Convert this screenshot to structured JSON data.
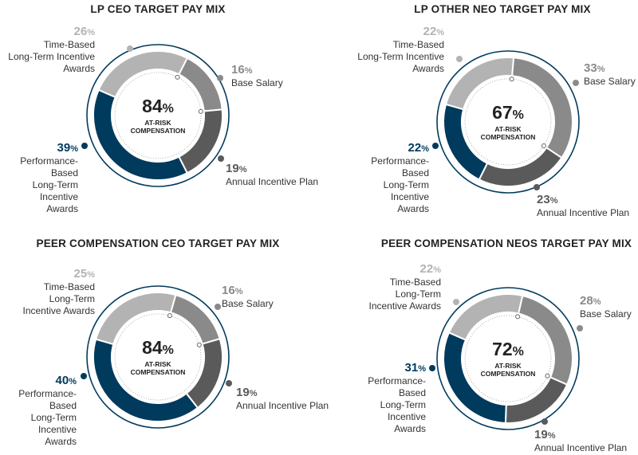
{
  "colors": {
    "time": "#b3b3b3",
    "base": "#8a8a8a",
    "aip": "#5a5a5a",
    "perf": "#003a5d",
    "ring": "#003a5d"
  },
  "center_label": "AT-RISK\nCOMPENSATION",
  "chart_data": [
    {
      "type": "pie",
      "title": "LP CEO TARGET PAY MIX",
      "center_value": "84",
      "unit": "%",
      "slices": [
        {
          "label": "Base Salary",
          "value": 16
        },
        {
          "label": "Annual Incentive Plan",
          "value": 19
        },
        {
          "label": "Performance-Based Long-Term Incentive Awards",
          "value": 39
        },
        {
          "label": "Time-Based Long-Term Incentive Awards",
          "value": 26
        }
      ],
      "labels": {
        "base": "Base Salary",
        "aip": "Annual Incentive Plan",
        "perf": "Performance-\nBased\nLong-Term\nIncentive\nAwards",
        "time": "Time-Based\nLong-Term Incentive\nAwards"
      }
    },
    {
      "type": "pie",
      "title": "LP OTHER NEO TARGET PAY MIX",
      "center_value": "67",
      "unit": "%",
      "slices": [
        {
          "label": "Base Salary",
          "value": 33
        },
        {
          "label": "Annual Incentive Plan",
          "value": 23
        },
        {
          "label": "Performance-Based Long-Term Incentive Awards",
          "value": 22
        },
        {
          "label": "Time-Based Long-Term Incentive Awards",
          "value": 22
        }
      ],
      "labels": {
        "base": "Base Salary",
        "aip": "Annual Incentive Plan",
        "perf": "Performance-\nBased\nLong-Term\nIncentive\nAwards",
        "time": "Time-Based\nLong-Term Incentive\nAwards"
      }
    },
    {
      "type": "pie",
      "title": "PEER COMPENSATION CEO TARGET PAY MIX",
      "center_value": "84",
      "unit": "%",
      "slices": [
        {
          "label": "Base Salary",
          "value": 16
        },
        {
          "label": "Annual Incentive Plan",
          "value": 19
        },
        {
          "label": "Performance-Based Long-Term Incentive Awards",
          "value": 40
        },
        {
          "label": "Time-Based Long-Term Incentive Awards",
          "value": 25
        }
      ],
      "labels": {
        "base": "Base Salary",
        "aip": "Annual Incentive Plan",
        "perf": "Performance-\nBased\nLong-Term\nIncentive\nAwards",
        "time": "Time-Based\nLong-Term\nIncentive Awards"
      }
    },
    {
      "type": "pie",
      "title": "PEER COMPENSATION NEOS TARGET PAY MIX",
      "center_value": "72",
      "unit": "%",
      "slices": [
        {
          "label": "Base Salary",
          "value": 28
        },
        {
          "label": "Annual Incentive Plan",
          "value": 19
        },
        {
          "label": "Performance-Based Long-Term Incentive Awards",
          "value": 31
        },
        {
          "label": "Time-Based Long-Term Incentive Awards",
          "value": 22
        }
      ],
      "labels": {
        "base": "Base Salary",
        "aip": "Annual Incentive Plan",
        "perf": "Performance-\nBased\nLong-Term\nIncentive\nAwards",
        "time": "Time-Based\nLong-Term\nIncentive Awards"
      }
    }
  ]
}
